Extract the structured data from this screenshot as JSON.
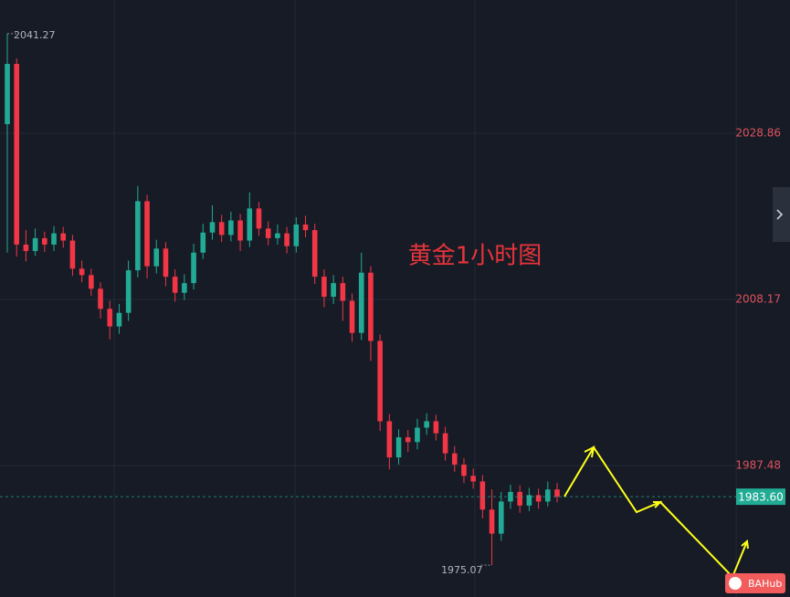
{
  "chart_data": {
    "type": "candlestick",
    "title": "黄金1小时图",
    "ylim": [
      1971.11,
      2045.46
    ],
    "yticks": [
      1987.48,
      2008.17,
      2028.86
    ],
    "grid": true,
    "up_color": "#22ab94",
    "down_color": "#f23645",
    "max_marker": 2041.27,
    "min_marker": 1975.07,
    "last_price": {
      "value": 1983.6,
      "label": "1983.60"
    },
    "watermark": "BAHub",
    "open": [
      2030,
      2037.5,
      2015,
      2014.2,
      2015.8,
      2015,
      2016.4,
      2015.5,
      2012,
      2011.2,
      2009.5,
      2007,
      2004.8,
      2006.5,
      2011.8,
      2020.4,
      2012.3,
      2014.5,
      2011,
      2009,
      2010.2,
      2014,
      2016.5,
      2017.8,
      2016.2,
      2018,
      2015.5,
      2019.5,
      2017,
      2015.8,
      2016.4,
      2014.8,
      2017.5,
      2016.8,
      2011,
      2008.5,
      2010.2,
      2008,
      2004,
      2011.5,
      2003,
      1993,
      1988.5,
      1991,
      1990.4,
      1992.2,
      1993,
      1991.5,
      1989,
      1987.6,
      1986.2,
      1985.5,
      1982,
      1979,
      1983,
      1984.2,
      1982.5,
      1983.8,
      1983,
      1984.5
    ],
    "high": [
      2041.27,
      2038.2,
      2016.8,
      2017,
      2016.6,
      2017.3,
      2017.2,
      2016.2,
      2013,
      2012,
      2010.3,
      2008,
      2007.6,
      2013,
      2022.3,
      2021.2,
      2015.6,
      2015.3,
      2011.9,
      2011.3,
      2015.1,
      2017.6,
      2019.9,
      2018.7,
      2019.1,
      2018.8,
      2021.5,
      2020.3,
      2017.9,
      2017.5,
      2017.2,
      2018.4,
      2018.6,
      2017.6,
      2011.9,
      2011.2,
      2011,
      2008.9,
      2014,
      2012.3,
      2003.8,
      1993.9,
      1992,
      1991.9,
      1993.3,
      1994,
      1993.8,
      1992.3,
      1989.9,
      1988.4,
      1987.1,
      1986.3,
      1984.5,
      1984.2,
      1985.1,
      1985,
      1984.7,
      1984.6,
      1985.5,
      1985.3
    ],
    "low": [
      2014,
      2013.5,
      2012.9,
      2013.6,
      2014.1,
      2014.2,
      2014.6,
      2011.1,
      2010.3,
      2008.6,
      2005.8,
      2003.2,
      2003.9,
      2005.5,
      2010.9,
      2010.8,
      2011.4,
      2009.8,
      2007.9,
      2008.1,
      2009.4,
      2013.2,
      2015.6,
      2015.3,
      2015.4,
      2014.2,
      2014.7,
      2016.1,
      2014.9,
      2015,
      2013.9,
      2014,
      2015.9,
      2010.1,
      2007.2,
      2007.6,
      2005.5,
      2002.9,
      2003.1,
      2000.5,
      1991.8,
      1987,
      1987.6,
      1989.2,
      1989.5,
      1991.3,
      1990.6,
      1988.1,
      1986.7,
      1985.3,
      1984.6,
      1980.9,
      1975.07,
      1978.1,
      1982.1,
      1981.6,
      1981.8,
      1982.1,
      1982.4,
      1982.9
    ],
    "close": [
      2037.5,
      2015,
      2014.2,
      2015.8,
      2015,
      2016.4,
      2015.5,
      2012,
      2011.2,
      2009.5,
      2007,
      2004.8,
      2006.5,
      2011.8,
      2020.4,
      2012.3,
      2014.5,
      2011,
      2009,
      2010.2,
      2014,
      2016.5,
      2017.8,
      2016.2,
      2018,
      2015.5,
      2019.5,
      2017,
      2015.8,
      2016.4,
      2014.8,
      2017.5,
      2016.8,
      2011,
      2008.5,
      2010.2,
      2008,
      2004,
      2011.5,
      2003,
      1993,
      1988.5,
      1991,
      1990.4,
      1992.2,
      1993,
      1991.5,
      1989,
      1987.6,
      1986.2,
      1985.5,
      1982,
      1979,
      1983,
      1984.2,
      1982.5,
      1983.8,
      1983,
      1984.5,
      1983.6
    ]
  }
}
